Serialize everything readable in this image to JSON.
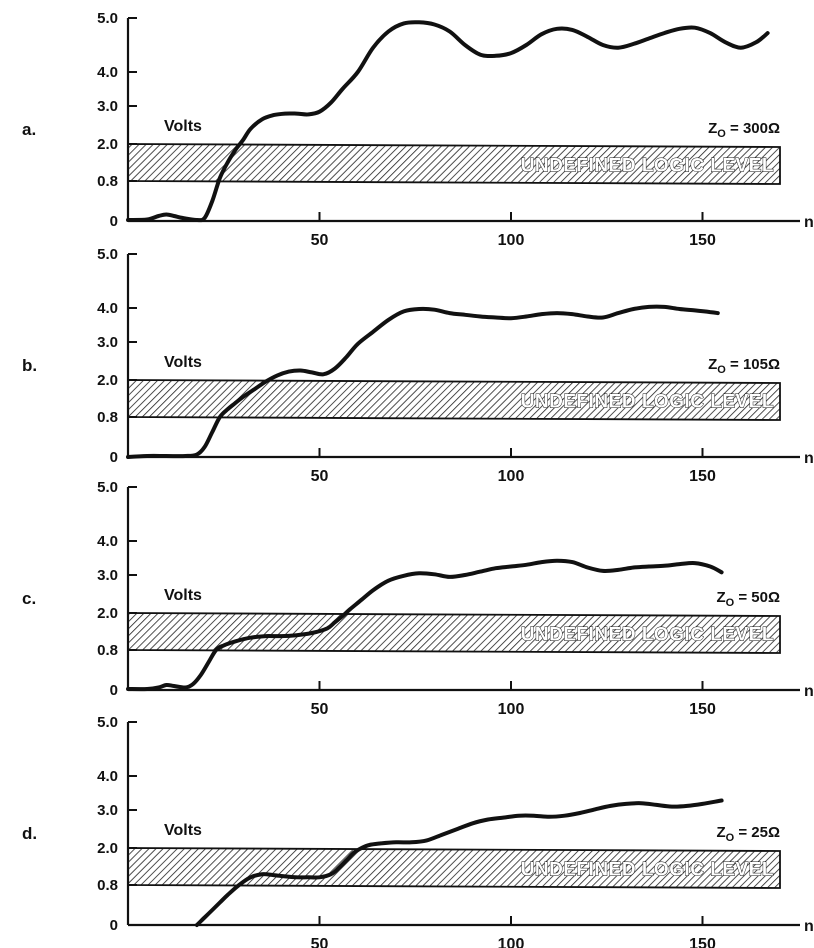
{
  "chart_data": [
    {
      "type": "line",
      "panel_label": "a.",
      "ylabel": "Volts",
      "xlabel_unit": "ns",
      "impedance_label": "Z",
      "impedance_sub": "O",
      "impedance_value": "= 300Ω",
      "band_label": "UNDEFINED LOGIC LEVEL",
      "band_range": [
        0.8,
        2.0
      ],
      "yticks": [
        0,
        0.8,
        2.0,
        3.0,
        4.0,
        5.0
      ],
      "ytick_labels": [
        "0",
        "0.8",
        "2.0",
        "3.0",
        "4.0",
        "5.0"
      ],
      "xticks": [
        50,
        100,
        150
      ],
      "xlim": [
        0,
        170
      ],
      "ylim": [
        0,
        5.0
      ],
      "grid": false,
      "series": [
        {
          "x": [
            0,
            5,
            8,
            10,
            12,
            15,
            18,
            20,
            22,
            24,
            26,
            28,
            30,
            32,
            35,
            38,
            41,
            44,
            47,
            50,
            53,
            56,
            60,
            64,
            68,
            72,
            76,
            80,
            84,
            88,
            92,
            96,
            100,
            104,
            108,
            112,
            116,
            120,
            124,
            128,
            132,
            136,
            140,
            144,
            148,
            152,
            156,
            160,
            164,
            167
          ],
          "y": [
            0.02,
            0.03,
            0.1,
            0.13,
            0.1,
            0.05,
            0.02,
            0.06,
            0.4,
            0.9,
            1.4,
            1.8,
            2.1,
            2.4,
            2.65,
            2.76,
            2.8,
            2.8,
            2.78,
            2.85,
            3.1,
            3.5,
            4.0,
            4.45,
            4.75,
            4.9,
            4.92,
            4.88,
            4.75,
            4.5,
            4.32,
            4.3,
            4.35,
            4.5,
            4.7,
            4.8,
            4.78,
            4.65,
            4.5,
            4.45,
            4.52,
            4.62,
            4.72,
            4.8,
            4.82,
            4.72,
            4.55,
            4.45,
            4.55,
            4.72
          ]
        }
      ]
    },
    {
      "type": "line",
      "panel_label": "b.",
      "ylabel": "Volts",
      "xlabel_unit": "ns",
      "impedance_label": "Z",
      "impedance_sub": "O",
      "impedance_value": "= 105Ω",
      "band_label": "UNDEFINED LOGIC LEVEL",
      "band_range": [
        0.8,
        2.0
      ],
      "yticks": [
        0,
        0.8,
        2.0,
        3.0,
        4.0,
        5.0
      ],
      "ytick_labels": [
        "0",
        "0.8",
        "2.0",
        "3.0",
        "4.0",
        "5.0"
      ],
      "xticks": [
        50,
        100,
        150
      ],
      "xlim": [
        0,
        170
      ],
      "ylim": [
        0,
        5.0
      ],
      "grid": false,
      "series": [
        {
          "x": [
            0,
            5,
            10,
            15,
            18,
            20,
            22,
            24,
            26,
            28,
            30,
            33,
            36,
            39,
            42,
            45,
            48,
            51,
            54,
            57,
            60,
            64,
            68,
            72,
            76,
            80,
            84,
            88,
            92,
            96,
            100,
            104,
            108,
            112,
            116,
            120,
            124,
            128,
            132,
            136,
            140,
            144,
            148,
            152,
            154
          ],
          "y": [
            0,
            0.02,
            0.02,
            0.02,
            0.05,
            0.2,
            0.5,
            0.8,
            1.05,
            1.25,
            1.45,
            1.7,
            1.95,
            2.12,
            2.22,
            2.25,
            2.2,
            2.15,
            2.3,
            2.6,
            2.95,
            3.3,
            3.65,
            3.9,
            3.97,
            3.95,
            3.85,
            3.8,
            3.75,
            3.72,
            3.7,
            3.75,
            3.82,
            3.85,
            3.82,
            3.75,
            3.72,
            3.85,
            3.97,
            4.02,
            4.02,
            3.97,
            3.93,
            3.88,
            3.85
          ]
        }
      ]
    },
    {
      "type": "line",
      "panel_label": "c.",
      "ylabel": "Volts",
      "xlabel_unit": "ns",
      "impedance_label": "Z",
      "impedance_sub": "O",
      "impedance_value": "= 50Ω",
      "band_label": "UNDEFINED LOGIC LEVEL",
      "band_range": [
        0.8,
        2.0
      ],
      "yticks": [
        0,
        0.8,
        2.0,
        3.0,
        4.0,
        5.0
      ],
      "ytick_labels": [
        "0",
        "0.8",
        "2.0",
        "3.0",
        "4.0",
        "5.0"
      ],
      "xticks": [
        50,
        100,
        150
      ],
      "xlim": [
        0,
        170
      ],
      "ylim": [
        0,
        5.0
      ],
      "grid": false,
      "series": [
        {
          "x": [
            0,
            5,
            8,
            10,
            12,
            15,
            17,
            19,
            21,
            23,
            25,
            28,
            32,
            36,
            40,
            44,
            48,
            52,
            54,
            56,
            58,
            61,
            64,
            68,
            72,
            76,
            80,
            84,
            88,
            92,
            96,
            100,
            104,
            108,
            112,
            116,
            120,
            124,
            128,
            132,
            136,
            140,
            144,
            148,
            152,
            155
          ],
          "y": [
            0.02,
            0.02,
            0.05,
            0.1,
            0.08,
            0.05,
            0.12,
            0.3,
            0.55,
            0.8,
            0.95,
            1.08,
            1.2,
            1.25,
            1.25,
            1.28,
            1.35,
            1.5,
            1.7,
            1.9,
            2.1,
            2.35,
            2.6,
            2.85,
            2.98,
            3.05,
            3.02,
            2.95,
            3.0,
            3.1,
            3.2,
            3.25,
            3.3,
            3.38,
            3.42,
            3.38,
            3.22,
            3.12,
            3.15,
            3.22,
            3.25,
            3.27,
            3.32,
            3.35,
            3.25,
            3.08
          ]
        }
      ]
    },
    {
      "type": "line",
      "panel_label": "d.",
      "ylabel": "Volts",
      "xlabel_unit": "ns",
      "impedance_label": "Z",
      "impedance_sub": "O",
      "impedance_value": "= 25Ω",
      "band_label": "UNDEFINED LOGIC LEVEL",
      "band_range": [
        0.8,
        2.0
      ],
      "yticks": [
        0,
        0.8,
        2.0,
        3.0,
        4.0,
        5.0
      ],
      "ytick_labels": [
        "0",
        "0.8",
        "2.0",
        "3.0",
        "4.0",
        "5.0"
      ],
      "xticks": [
        50,
        100,
        150
      ],
      "xlim": [
        0,
        170
      ],
      "ylim": [
        0,
        5.0
      ],
      "grid": false,
      "series": [
        {
          "x": [
            18,
            20,
            22,
            24,
            26,
            29,
            32,
            35,
            38,
            41,
            44,
            47,
            50,
            53,
            55,
            57,
            59,
            61,
            63,
            66,
            70,
            74,
            78,
            82,
            86,
            90,
            94,
            98,
            102,
            106,
            110,
            114,
            118,
            122,
            126,
            130,
            134,
            138,
            142,
            146,
            150,
            155
          ],
          "y": [
            0,
            0.15,
            0.3,
            0.45,
            0.6,
            0.8,
            1.05,
            1.15,
            1.12,
            1.08,
            1.05,
            1.05,
            1.05,
            1.15,
            1.35,
            1.6,
            1.85,
            2.0,
            2.08,
            2.12,
            2.15,
            2.15,
            2.2,
            2.35,
            2.5,
            2.65,
            2.75,
            2.8,
            2.85,
            2.85,
            2.82,
            2.85,
            2.92,
            3.02,
            3.12,
            3.18,
            3.2,
            3.15,
            3.1,
            3.12,
            3.18,
            3.28
          ]
        }
      ]
    }
  ]
}
